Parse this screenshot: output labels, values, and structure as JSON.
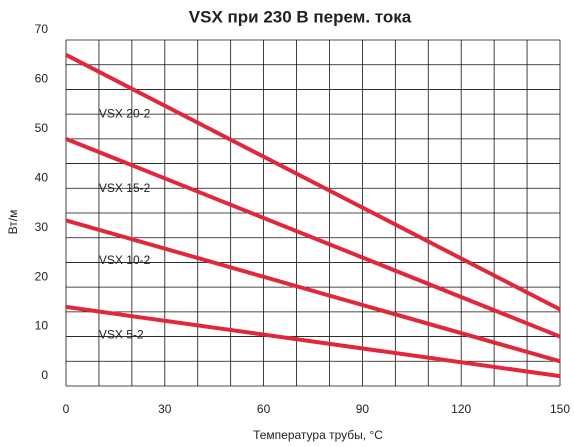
{
  "chart_data": {
    "type": "line",
    "title": "VSX при 230 В перем. тока",
    "x_label": "Температура трубы, °C",
    "y_label": "Вт/м",
    "x": [
      0,
      150
    ],
    "series": [
      {
        "name": "VSX 20-2",
        "color": "#e0283a",
        "values": [
          67,
          15.5
        ]
      },
      {
        "name": "VSX 15-2",
        "color": "#e0283a",
        "values": [
          50,
          10
        ]
      },
      {
        "name": "VSX 10-2",
        "color": "#e0283a",
        "values": [
          33.5,
          5
        ]
      },
      {
        "name": "VSX 5-2",
        "color": "#e0283a",
        "values": [
          16,
          2
        ]
      }
    ],
    "xlim": [
      0,
      150
    ],
    "ylim": [
      0,
      70
    ],
    "xticks": [
      0,
      30,
      60,
      90,
      120,
      150
    ],
    "yticks": [
      0,
      10,
      20,
      30,
      40,
      50,
      60,
      70
    ],
    "xgrid": [
      0,
      10,
      20,
      30,
      40,
      50,
      60,
      70,
      80,
      90,
      100,
      110,
      120,
      130,
      140,
      150
    ],
    "ygrid": [
      0,
      5,
      10,
      15,
      20,
      25,
      30,
      35,
      40,
      45,
      50,
      55,
      60,
      65,
      70
    ]
  }
}
